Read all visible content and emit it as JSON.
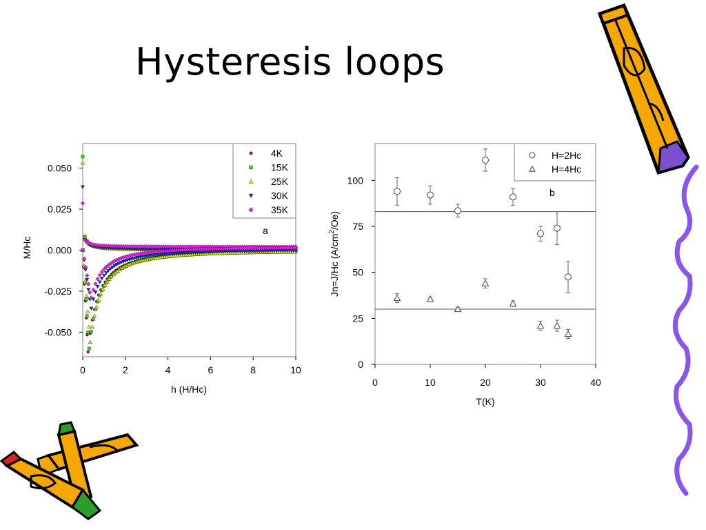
{
  "slide": {
    "title": "Hysteresis loops"
  },
  "colors": {
    "pencil_body": "#f7a800",
    "pencil_outline": "#000000",
    "pencil_eraser": "#7a4fd0",
    "squiggle": "#8855ee",
    "series_4K": "#cc1111",
    "series_15K": "#33dd33",
    "series_25K": "#eeee00",
    "series_30K": "#1133cc",
    "series_35K": "#ee22ee"
  },
  "decorations": [
    "pencil-icon",
    "pencil-icon",
    "pencil-icon",
    "squiggle-line"
  ],
  "chart_data": [
    {
      "type": "scatter",
      "xlabel": "h (H/Hc)",
      "ylabel": "M/Hc",
      "xlim": [
        0,
        10
      ],
      "ylim": [
        -0.065,
        0.065
      ],
      "xticks": [
        "0",
        "2",
        "4",
        "6",
        "8",
        "10"
      ],
      "yticks": [
        "0.050",
        "0.025",
        "0.000",
        "-0.025",
        "-0.050"
      ],
      "annotation": "a",
      "legend": "top-right",
      "series": [
        {
          "name": "4K",
          "marker": "circle",
          "a": 0.015,
          "h0": 0.16,
          "p": 1.2,
          "offset": 0.0,
          "dip_h": 0.25,
          "dip_m": -0.062
        },
        {
          "name": "15K",
          "marker": "square",
          "a": 0.015,
          "h0": 0.16,
          "p": 1.2,
          "offset": 0.0,
          "dip_h": 0.3,
          "dip_m": -0.06
        },
        {
          "name": "25K",
          "marker": "triangle-up",
          "a": 0.014,
          "h0": 0.15,
          "p": 1.2,
          "offset": 0.0,
          "dip_h": 0.35,
          "dip_m": -0.056
        },
        {
          "name": "30K",
          "marker": "triangle-down",
          "a": 0.01,
          "h0": 0.2,
          "p": 1.3,
          "offset": 0.0005,
          "dip_h": 0.4,
          "dip_m": -0.036
        },
        {
          "name": "35K",
          "marker": "diamond",
          "a": 0.007,
          "h0": 0.2,
          "p": 1.3,
          "offset": 0.002,
          "dip_h": 0.4,
          "dip_m": -0.031
        }
      ]
    },
    {
      "type": "scatter",
      "xlabel": "T(K)",
      "ylabel": "Jn=J/Hc (A/cm²/Oe)",
      "ylabel_main": "Jn=J/Hc (A/cm",
      "ylabel_sup": "2",
      "ylabel_tail": "/Oe)",
      "xlim": [
        0,
        40
      ],
      "ylim": [
        0,
        120
      ],
      "xticks": [
        "0",
        "10",
        "20",
        "30",
        "40"
      ],
      "yticks": [
        "0",
        "25",
        "50",
        "75",
        "100"
      ],
      "annotation": "b",
      "legend": "top-right",
      "reference_lines": [
        83,
        30
      ],
      "series": [
        {
          "name": "H=2Hc",
          "marker": "open-circle",
          "points": [
            {
              "x": 4,
              "y": 94,
              "err": 7.5
            },
            {
              "x": 10,
              "y": 92,
              "err": 5
            },
            {
              "x": 15,
              "y": 83.5,
              "err": 3.5
            },
            {
              "x": 20,
              "y": 111,
              "err": 6
            },
            {
              "x": 25,
              "y": 91,
              "err": 4.5
            },
            {
              "x": 30,
              "y": 71,
              "err": 4
            },
            {
              "x": 33,
              "y": 74,
              "err": 9
            },
            {
              "x": 35,
              "y": 47.5,
              "err": 8.5
            }
          ]
        },
        {
          "name": "H=4Hc",
          "marker": "open-triangle",
          "points": [
            {
              "x": 4,
              "y": 36,
              "err": 2.5
            },
            {
              "x": 10,
              "y": 35.5,
              "err": 1
            },
            {
              "x": 15,
              "y": 30,
              "err": 1
            },
            {
              "x": 20,
              "y": 44,
              "err": 2.5
            },
            {
              "x": 25,
              "y": 33,
              "err": 1.5
            },
            {
              "x": 30,
              "y": 21,
              "err": 2.5
            },
            {
              "x": 33,
              "y": 21,
              "err": 3
            },
            {
              "x": 35,
              "y": 16.5,
              "err": 2.5
            }
          ]
        }
      ]
    }
  ]
}
